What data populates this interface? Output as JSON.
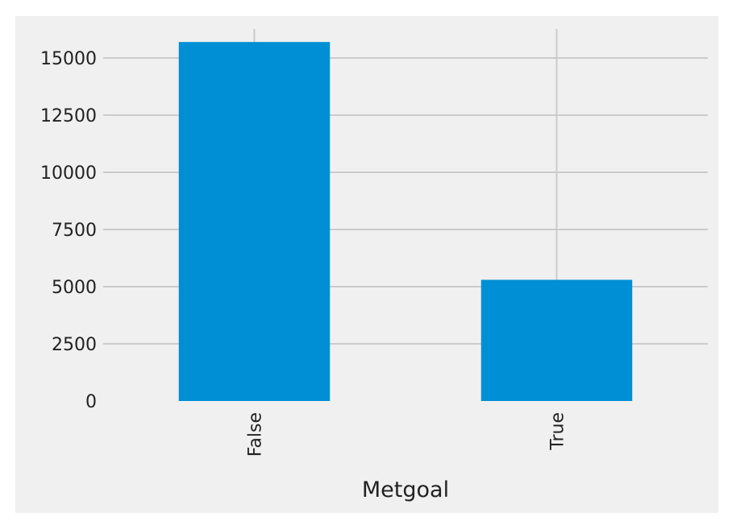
{
  "colors": {
    "figure_background": "#f0f0f0",
    "grid": "#cbcbcb",
    "bar": "#008fd5",
    "text": "#222222"
  },
  "chart_data": {
    "type": "bar",
    "categories": [
      "False",
      "True"
    ],
    "values": [
      15700,
      5300
    ],
    "title": "",
    "xlabel": "Metgoal",
    "ylabel": "",
    "ylim": [
      0,
      16500
    ],
    "yticks": [
      0,
      2500,
      5000,
      7500,
      10000,
      12500,
      15000
    ],
    "ytick_labels": [
      "0",
      "2500",
      "5000",
      "7500",
      "10000",
      "12500",
      "15000"
    ],
    "xtick_rotation": "vertical",
    "grid": true,
    "legend": "none",
    "style": "fivethirtyeight"
  }
}
